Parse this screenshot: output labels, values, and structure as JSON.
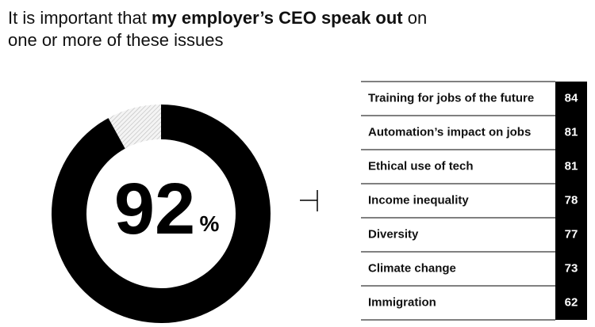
{
  "title": [
    "It is important that ",
    "my employer’s CEO speak out",
    " on",
    "one or more of these issues"
  ],
  "chart_data": {
    "type": "donut",
    "values": [
      92
    ],
    "unit": "%",
    "scale": [
      0,
      100
    ],
    "color": "#000000"
  },
  "table": {
    "rows": [
      [
        "Training for jobs of the future",
        84
      ],
      [
        "Automation’s impact on jobs",
        81
      ],
      [
        "Ethical use of tech",
        81
      ],
      [
        "Income inequality",
        78
      ],
      [
        "Diversity",
        77
      ],
      [
        "Climate change",
        73
      ],
      [
        "Immigration",
        62
      ]
    ]
  }
}
